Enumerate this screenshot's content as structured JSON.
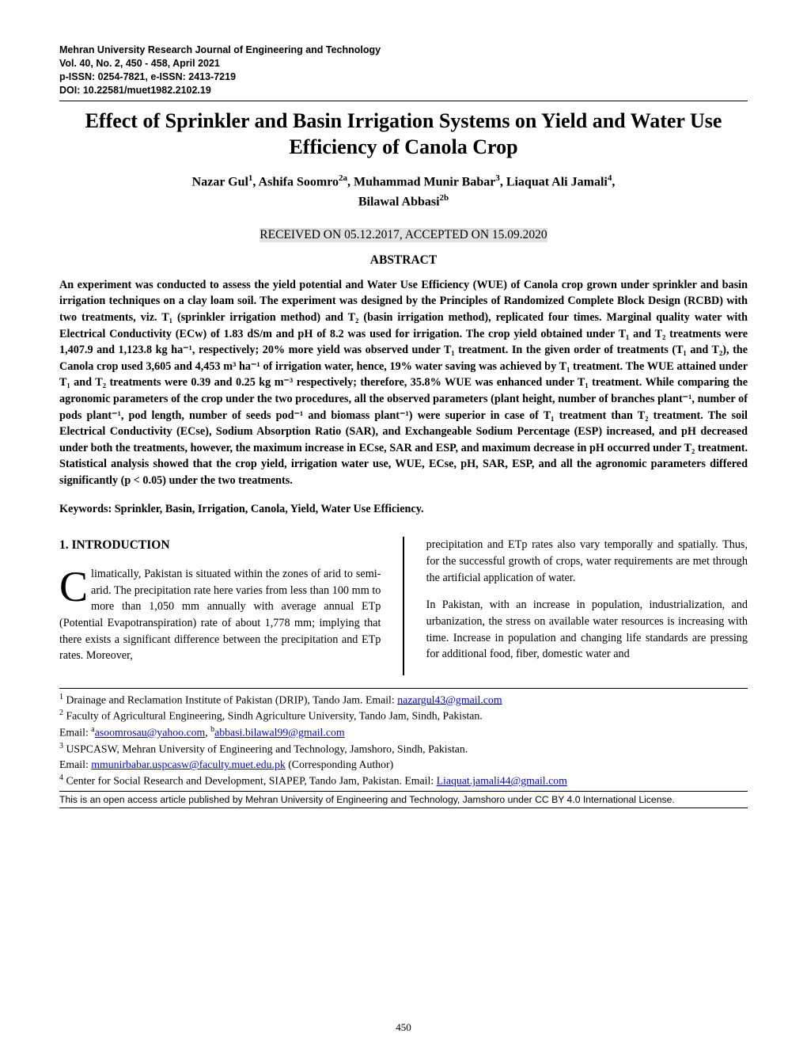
{
  "header": {
    "journal": "Mehran University Research Journal of Engineering and Technology",
    "issue": "Vol. 40, No. 2, 450 - 458, April 2021",
    "issn": "p-ISSN: 0254-7821, e-ISSN: 2413-7219",
    "doi": "DOI: 10.22581/muet1982.2102.19"
  },
  "title": "Effect of Sprinkler and Basin Irrigation Systems on Yield and Water Use Efficiency of Canola Crop",
  "authors_line1": "Nazar Gul",
  "authors_aff1": "1",
  "authors_sep1": ",  Ashifa Soomro",
  "authors_aff2": "2a",
  "authors_sep2": ",  Muhammad Munir Babar",
  "authors_aff3": "3",
  "authors_sep3": ", Liaquat Ali Jamali",
  "authors_aff4": "4",
  "authors_sep4": ",",
  "authors_line2": "Bilawal Abbasi",
  "authors_aff5": "2b",
  "dates": "RECEIVED ON 05.12.2017, ACCEPTED ON 15.09.2020",
  "abstract_heading": "ABSTRACT",
  "abstract": "An experiment was conducted to assess the yield potential and Water Use Efficiency (WUE) of Canola crop grown under sprinkler and basin irrigation techniques on a clay loam soil. The experiment was designed by the Principles of Randomized Complete Block Design (RCBD) with two treatments, viz. T₁ (sprinkler irrigation method) and T₂ (basin irrigation method), replicated four times. Marginal quality water with Electrical Conductivity (ECw) of 1.83 dS/m and pH of 8.2 was used for irrigation. The crop yield obtained under T₁ and T₂ treatments were 1,407.9 and 1,123.8 kg ha⁻¹, respectively; 20% more yield was observed under T₁ treatment. In the given order of treatments (T₁ and T₂), the Canola crop used 3,605 and 4,453 m³ ha⁻¹ of irrigation water, hence, 19% water saving was achieved by T₁ treatment. The WUE attained under T₁ and T₂ treatments were 0.39 and 0.25 kg m⁻³  respectively; therefore, 35.8% WUE was enhanced under T₁ treatment. While comparing the agronomic parameters of the crop under the two procedures, all the observed parameters (plant height, number of branches plant⁻¹, number of pods plant⁻¹, pod length, number of seeds pod⁻¹ and biomass plant⁻¹) were superior in case of T₁ treatment than T₂ treatment. The soil Electrical Conductivity (ECse), Sodium Absorption Ratio (SAR), and Exchangeable Sodium Percentage (ESP) increased, and pH decreased under both the treatments, however, the maximum increase in ECse, SAR and ESP, and maximum decrease in pH occurred under T₂ treatment. Statistical analysis showed that the crop yield, irrigation water use, WUE, ECse, pH, SAR, ESP, and all the agronomic parameters differed significantly (p < 0.05) under the two treatments.",
  "keywords": "Keywords: Sprinkler, Basin, Irrigation, Canola, Yield, Water Use Efficiency.",
  "section_heading": "1.  INTRODUCTION",
  "body": {
    "col1_p1_drop": "C",
    "col1_p1": "limatically, Pakistan is situated within the zones of arid to semi-arid. The precipitation rate here varies from less than 100 mm to more than 1,050 mm annually with average annual ETp (Potential Evapotranspiration) rate of about 1,778 mm; implying that there exists a significant difference between the precipitation and ETp rates. Moreover,",
    "col2_p1": "precipitation and ETp rates also vary temporally and spatially. Thus, for the successful growth of crops, water requirements are met through the artificial application of water.",
    "col2_p2": "In Pakistan, with an increase in population, industrialization, and urbanization, the stress on available water resources is increasing with time. Increase in population and changing life standards are pressing for additional food, fiber, domestic water and"
  },
  "footnotes": {
    "f1_pre": " Drainage and Reclamation Institute of Pakistan (DRIP), Tando Jam. Email: ",
    "f1_email": "nazargul43@gmail.com",
    "f2_pre": " Faculty of Agricultural Engineering, Sindh Agriculture University, Tando Jam, Sindh, Pakistan.",
    "f2_line2_pre": "  Email: ",
    "f2_email_a": "asoomrosau@yahoo.com",
    "f2_sep": ",  ",
    "f2_email_b": "abbasi.bilawal99@gmail.com",
    "f3_pre": " USPCASW, Mehran University of Engineering and Technology, Jamshoro, Sindh, Pakistan.",
    "f3_line2_pre": "  Email: ",
    "f3_email": "mmunirbabar.uspcasw@faculty.muet.edu.pk",
    "f3_post": "  (Corresponding Author)",
    "f4_pre": " Center for Social Research and Development, SIAPEP, Tando Jam, Pakistan. Email: ",
    "f4_email": "Liaquat.jamali44@gmail.com"
  },
  "license": "This is an open access article published by Mehran University of Engineering and Technology, Jamshoro under CC BY 4.0 International License.",
  "page_number": "450"
}
